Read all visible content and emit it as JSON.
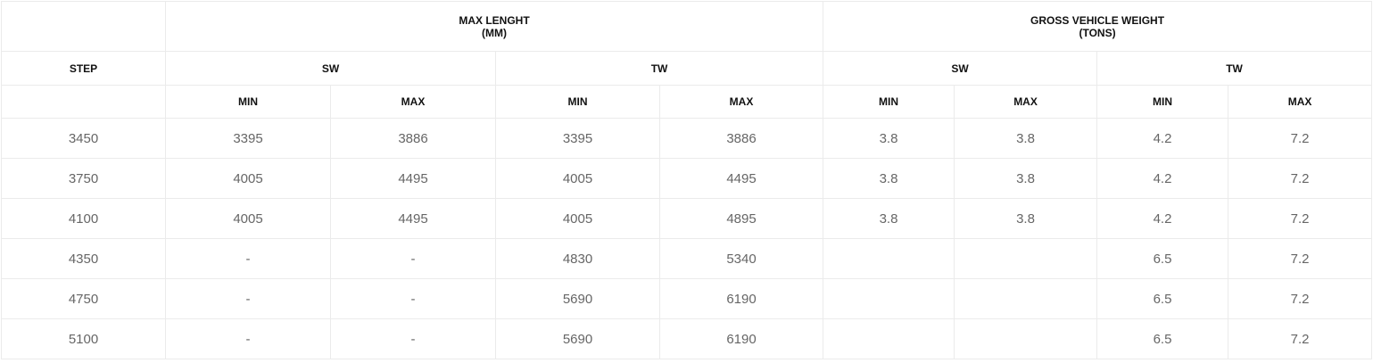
{
  "header": {
    "group_length": [
      "MAX LENGHT",
      "(MM)"
    ],
    "group_weight": [
      "GROSS VEHICLE WEIGHT",
      "(TONS)"
    ],
    "step": "STEP",
    "sw": "SW",
    "tw": "TW",
    "min": "MIN",
    "max": "MAX"
  },
  "rows": [
    [
      "3450",
      "3395",
      "3886",
      "3395",
      "3886",
      "3.8",
      "3.8",
      "4.2",
      "7.2"
    ],
    [
      "3750",
      "4005",
      "4495",
      "4005",
      "4495",
      "3.8",
      "3.8",
      "4.2",
      "7.2"
    ],
    [
      "4100",
      "4005",
      "4495",
      "4005",
      "4895",
      "3.8",
      "3.8",
      "4.2",
      "7.2"
    ],
    [
      "4350",
      "-",
      "-",
      "4830",
      "5340",
      "",
      "",
      "6.5",
      "7.2"
    ],
    [
      "4750",
      "-",
      "-",
      "5690",
      "6190",
      "",
      "",
      "6.5",
      "7.2"
    ],
    [
      "5100",
      "-",
      "-",
      "5690",
      "6190",
      "",
      "",
      "6.5",
      "7.2"
    ]
  ]
}
